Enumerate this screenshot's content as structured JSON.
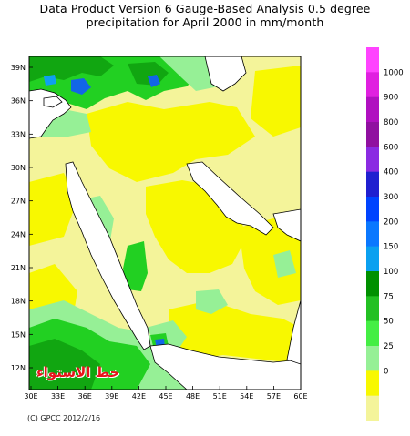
{
  "title": {
    "line1": "Data Product Version 6 Gauge-Based Analysis 0.5 degree",
    "line2": "precipitation for April  2000 in mm/month"
  },
  "map": {
    "lat_labels": [
      "39N",
      "36N",
      "33N",
      "30N",
      "27N",
      "24N",
      "21N",
      "18N",
      "15N",
      "12N"
    ],
    "lon_labels": [
      "30E",
      "33E",
      "36E",
      "39E",
      "42E",
      "45E",
      "48E",
      "51E",
      "54E",
      "57E",
      "60E"
    ],
    "colors": {
      "land_pale": "#f4f49a",
      "land_yellow": "#f8f800",
      "green_light": "#96f096",
      "green": "#22d022",
      "green_dark": "#11a611",
      "blue_light": "#0fa0f0",
      "blue": "#1266e6",
      "water": "#ffffff"
    }
  },
  "colorbar": {
    "labels": [
      "1000",
      "900",
      "800",
      "600",
      "400",
      "300",
      "200",
      "150",
      "100",
      "75",
      "50",
      "25",
      "0"
    ],
    "colors": [
      "#ff44ff",
      "#e020e0",
      "#b010c0",
      "#9010a0",
      "#8a2be2",
      "#2020d0",
      "#0044ff",
      "#0a78ff",
      "#0aa0f0",
      "#009000",
      "#22c022",
      "#44ee44",
      "#96f096",
      "#f8f800",
      "#f4f49a"
    ]
  },
  "watermark": "خط الاستواء",
  "credit": "(C) GPCC 2012/2/16"
}
